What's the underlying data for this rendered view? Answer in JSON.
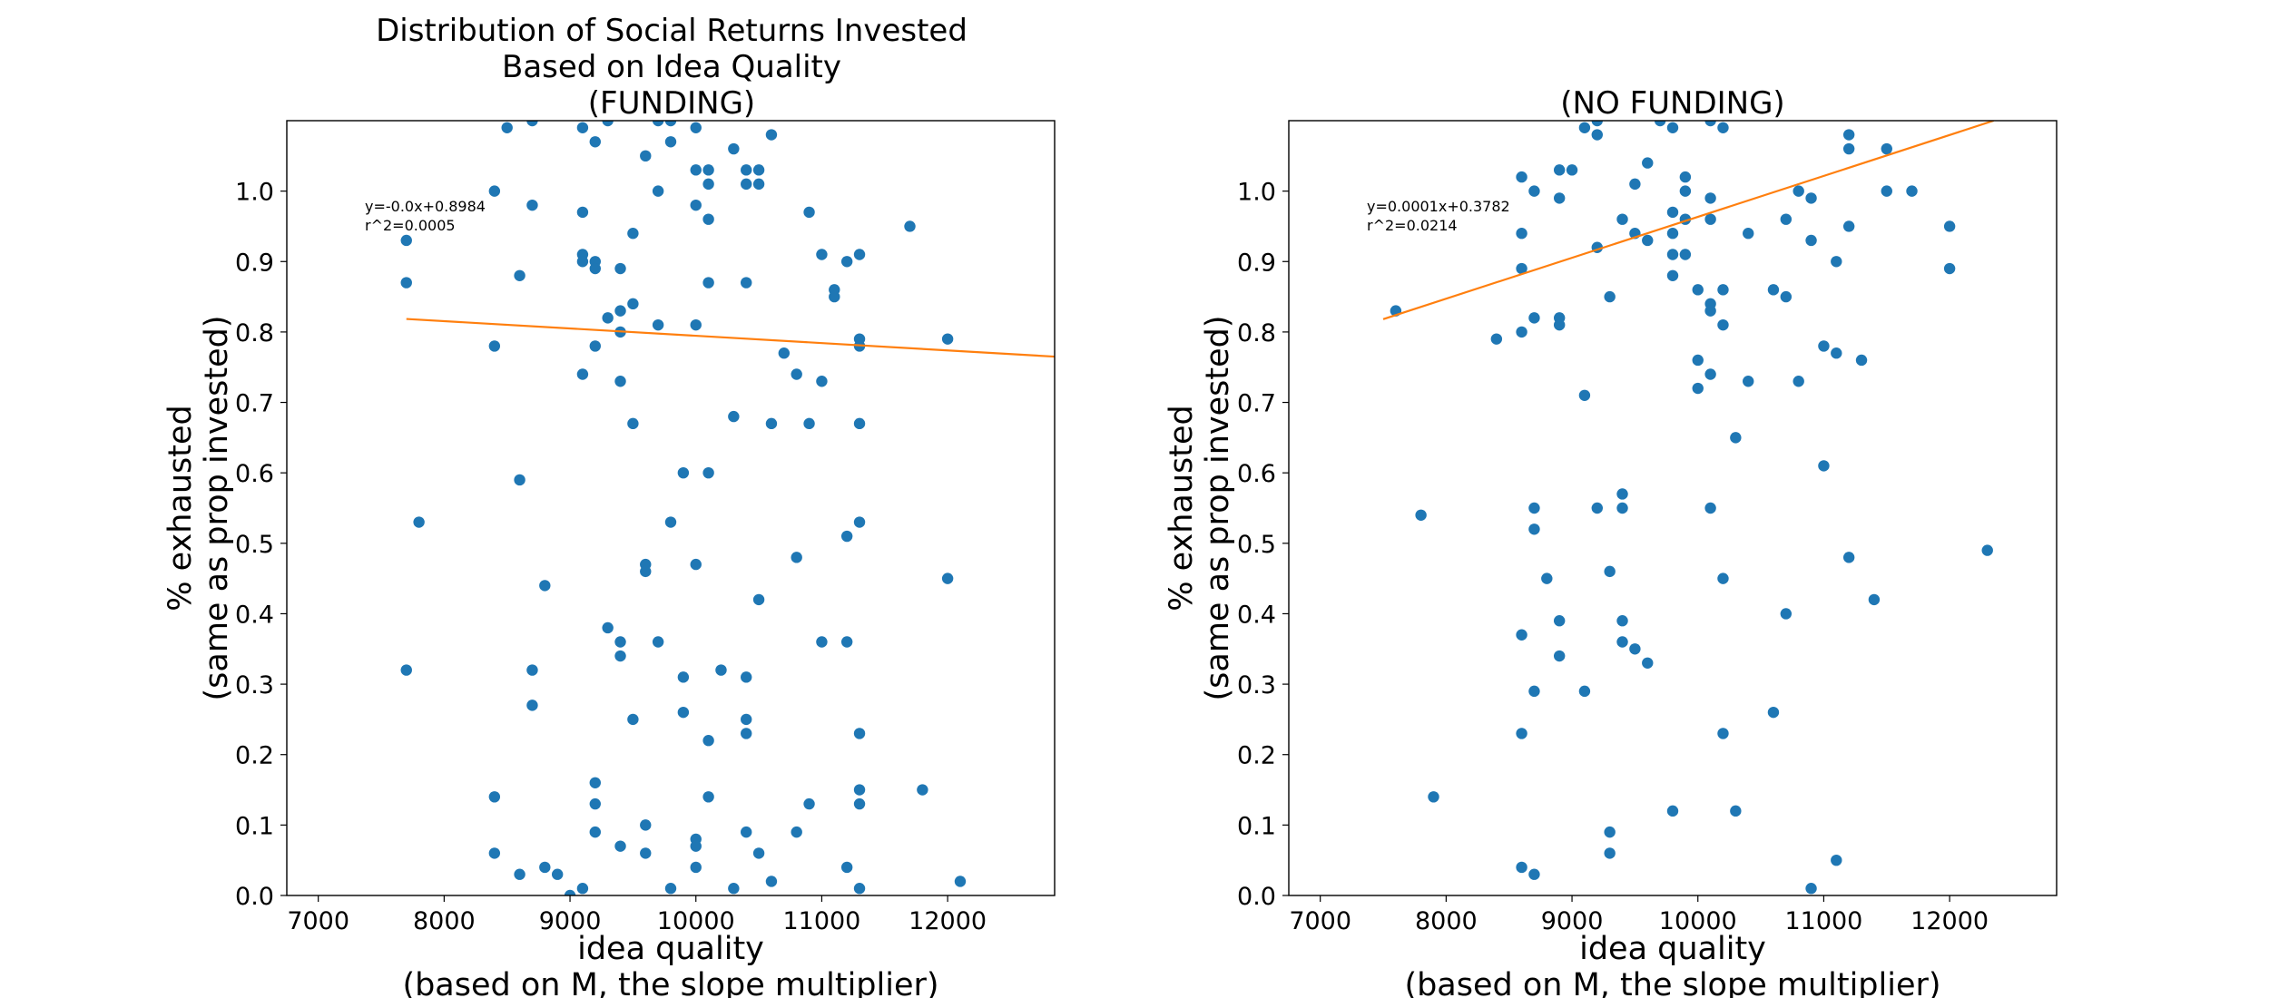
{
  "chart_data": [
    {
      "type": "scatter",
      "title": "Distribution of Social Returns Invested\nBased on Idea Quality\n(FUNDING)",
      "xlabel": "idea quality\n(based on M, the slope multiplier)",
      "ylabel": "% exhausted\n(same as prop invested)",
      "xlim": [
        6750,
        12850
      ],
      "ylim": [
        0.0,
        1.1
      ],
      "xticks": [
        "7000",
        "8000",
        "9000",
        "10000",
        "11000",
        "12000"
      ],
      "yticks": [
        "0.0",
        "0.1",
        "0.2",
        "0.3",
        "0.4",
        "0.5",
        "0.6",
        "0.7",
        "0.8",
        "0.9",
        "1.0"
      ],
      "point_color": "#1f77b4",
      "line_color": "#ff7f0e",
      "fit_text": "y=-0.0x+0.8984\nr^2=0.0005",
      "fit_line": {
        "x": [
          7700,
          12850
        ],
        "y": [
          0.8185,
          0.765
        ]
      },
      "points": [
        [
          7700,
          0.93
        ],
        [
          7700,
          0.87
        ],
        [
          7700,
          0.32
        ],
        [
          7800,
          0.53
        ],
        [
          8400,
          1.0
        ],
        [
          8400,
          0.78
        ],
        [
          8400,
          0.14
        ],
        [
          8400,
          0.06
        ],
        [
          8500,
          1.09
        ],
        [
          8600,
          0.88
        ],
        [
          8600,
          0.59
        ],
        [
          8600,
          0.03
        ],
        [
          8700,
          1.1
        ],
        [
          8700,
          0.98
        ],
        [
          8700,
          0.32
        ],
        [
          8700,
          0.27
        ],
        [
          8800,
          0.44
        ],
        [
          8800,
          0.04
        ],
        [
          8900,
          0.03
        ],
        [
          9000,
          0.0
        ],
        [
          9100,
          1.09
        ],
        [
          9100,
          0.97
        ],
        [
          9100,
          0.91
        ],
        [
          9100,
          0.9
        ],
        [
          9100,
          0.74
        ],
        [
          9100,
          0.01
        ],
        [
          9200,
          1.07
        ],
        [
          9200,
          0.9
        ],
        [
          9200,
          0.89
        ],
        [
          9200,
          0.78
        ],
        [
          9200,
          0.16
        ],
        [
          9200,
          0.13
        ],
        [
          9200,
          0.09
        ],
        [
          9300,
          1.1
        ],
        [
          9300,
          0.82
        ],
        [
          9300,
          0.38
        ],
        [
          9400,
          0.89
        ],
        [
          9400,
          0.83
        ],
        [
          9400,
          0.8
        ],
        [
          9400,
          0.73
        ],
        [
          9400,
          0.36
        ],
        [
          9400,
          0.34
        ],
        [
          9400,
          0.07
        ],
        [
          9500,
          0.94
        ],
        [
          9500,
          0.84
        ],
        [
          9500,
          0.67
        ],
        [
          9500,
          0.25
        ],
        [
          9600,
          1.05
        ],
        [
          9600,
          0.47
        ],
        [
          9600,
          0.46
        ],
        [
          9600,
          0.1
        ],
        [
          9600,
          0.06
        ],
        [
          9700,
          1.1
        ],
        [
          9700,
          1.0
        ],
        [
          9700,
          0.81
        ],
        [
          9700,
          0.36
        ],
        [
          9800,
          1.1
        ],
        [
          9800,
          1.07
        ],
        [
          9800,
          0.53
        ],
        [
          9800,
          0.01
        ],
        [
          9900,
          0.6
        ],
        [
          9900,
          0.31
        ],
        [
          9900,
          0.26
        ],
        [
          10000,
          1.09
        ],
        [
          10000,
          1.03
        ],
        [
          10000,
          0.98
        ],
        [
          10000,
          0.81
        ],
        [
          10000,
          0.47
        ],
        [
          10000,
          0.08
        ],
        [
          10000,
          0.07
        ],
        [
          10000,
          0.04
        ],
        [
          10100,
          1.03
        ],
        [
          10100,
          1.01
        ],
        [
          10100,
          0.96
        ],
        [
          10100,
          0.87
        ],
        [
          10100,
          0.6
        ],
        [
          10100,
          0.22
        ],
        [
          10100,
          0.14
        ],
        [
          10200,
          0.32
        ],
        [
          10300,
          1.06
        ],
        [
          10300,
          0.68
        ],
        [
          10300,
          0.01
        ],
        [
          10400,
          1.03
        ],
        [
          10400,
          1.01
        ],
        [
          10400,
          0.87
        ],
        [
          10400,
          0.31
        ],
        [
          10400,
          0.25
        ],
        [
          10400,
          0.23
        ],
        [
          10400,
          0.09
        ],
        [
          10500,
          1.03
        ],
        [
          10500,
          1.01
        ],
        [
          10500,
          0.42
        ],
        [
          10500,
          0.06
        ],
        [
          10600,
          1.08
        ],
        [
          10600,
          0.67
        ],
        [
          10600,
          0.02
        ],
        [
          10700,
          0.77
        ],
        [
          10800,
          0.74
        ],
        [
          10800,
          0.48
        ],
        [
          10800,
          0.09
        ],
        [
          10900,
          0.97
        ],
        [
          10900,
          0.67
        ],
        [
          10900,
          0.13
        ],
        [
          11000,
          0.91
        ],
        [
          11000,
          0.73
        ],
        [
          11000,
          0.36
        ],
        [
          11100,
          0.86
        ],
        [
          11100,
          0.85
        ],
        [
          11200,
          0.9
        ],
        [
          11200,
          0.51
        ],
        [
          11200,
          0.36
        ],
        [
          11200,
          0.04
        ],
        [
          11300,
          0.91
        ],
        [
          11300,
          0.79
        ],
        [
          11300,
          0.78
        ],
        [
          11300,
          0.67
        ],
        [
          11300,
          0.53
        ],
        [
          11300,
          0.23
        ],
        [
          11300,
          0.15
        ],
        [
          11300,
          0.13
        ],
        [
          11300,
          0.01
        ],
        [
          11700,
          0.95
        ],
        [
          11800,
          0.15
        ],
        [
          12000,
          0.79
        ],
        [
          12000,
          0.45
        ],
        [
          12100,
          0.02
        ]
      ]
    },
    {
      "type": "scatter",
      "title": "(NO FUNDING)",
      "xlabel": "idea quality\n(based on M, the slope multiplier)",
      "ylabel": "% exhausted\n(same as prop invested)",
      "xlim": [
        6750,
        12850
      ],
      "ylim": [
        0.0,
        1.1
      ],
      "xticks": [
        "7000",
        "8000",
        "9000",
        "10000",
        "11000",
        "12000"
      ],
      "yticks": [
        "0.0",
        "0.1",
        "0.2",
        "0.3",
        "0.4",
        "0.5",
        "0.6",
        "0.7",
        "0.8",
        "0.9",
        "1.0"
      ],
      "point_color": "#1f77b4",
      "line_color": "#ff7f0e",
      "fit_text": "y=0.0001x+0.3782\nr^2=0.0214",
      "fit_line": {
        "x": [
          7500,
          12350
        ],
        "y": [
          0.8182,
          1.1
        ]
      },
      "points": [
        [
          7600,
          0.83
        ],
        [
          7800,
          0.54
        ],
        [
          7900,
          0.14
        ],
        [
          8400,
          0.79
        ],
        [
          8600,
          1.02
        ],
        [
          8600,
          0.94
        ],
        [
          8600,
          0.89
        ],
        [
          8600,
          0.8
        ],
        [
          8600,
          0.37
        ],
        [
          8600,
          0.23
        ],
        [
          8600,
          0.04
        ],
        [
          8700,
          1.0
        ],
        [
          8700,
          0.82
        ],
        [
          8700,
          0.55
        ],
        [
          8700,
          0.52
        ],
        [
          8700,
          0.29
        ],
        [
          8700,
          0.03
        ],
        [
          8800,
          0.45
        ],
        [
          8900,
          1.03
        ],
        [
          8900,
          0.99
        ],
        [
          8900,
          0.82
        ],
        [
          8900,
          0.81
        ],
        [
          8900,
          0.39
        ],
        [
          8900,
          0.34
        ],
        [
          9000,
          1.03
        ],
        [
          9100,
          1.09
        ],
        [
          9100,
          0.71
        ],
        [
          9100,
          0.29
        ],
        [
          9200,
          1.1
        ],
        [
          9200,
          1.08
        ],
        [
          9200,
          0.92
        ],
        [
          9200,
          0.55
        ],
        [
          9300,
          0.85
        ],
        [
          9300,
          0.46
        ],
        [
          9300,
          0.09
        ],
        [
          9300,
          0.06
        ],
        [
          9400,
          0.96
        ],
        [
          9400,
          0.57
        ],
        [
          9400,
          0.55
        ],
        [
          9400,
          0.39
        ],
        [
          9400,
          0.36
        ],
        [
          9500,
          1.01
        ],
        [
          9500,
          0.94
        ],
        [
          9500,
          0.35
        ],
        [
          9600,
          1.04
        ],
        [
          9600,
          0.93
        ],
        [
          9600,
          0.33
        ],
        [
          9700,
          1.1
        ],
        [
          9800,
          1.09
        ],
        [
          9800,
          0.97
        ],
        [
          9800,
          0.94
        ],
        [
          9800,
          0.91
        ],
        [
          9800,
          0.88
        ],
        [
          9800,
          0.12
        ],
        [
          9900,
          1.02
        ],
        [
          9900,
          1.0
        ],
        [
          9900,
          0.96
        ],
        [
          9900,
          0.91
        ],
        [
          10000,
          0.86
        ],
        [
          10000,
          0.76
        ],
        [
          10000,
          0.72
        ],
        [
          10100,
          1.1
        ],
        [
          10100,
          0.99
        ],
        [
          10100,
          0.96
        ],
        [
          10100,
          0.84
        ],
        [
          10100,
          0.83
        ],
        [
          10100,
          0.74
        ],
        [
          10100,
          0.55
        ],
        [
          10200,
          1.09
        ],
        [
          10200,
          0.86
        ],
        [
          10200,
          0.81
        ],
        [
          10200,
          0.45
        ],
        [
          10200,
          0.23
        ],
        [
          10300,
          0.65
        ],
        [
          10300,
          0.12
        ],
        [
          10400,
          0.94
        ],
        [
          10400,
          0.73
        ],
        [
          10600,
          0.86
        ],
        [
          10600,
          0.26
        ],
        [
          10700,
          0.96
        ],
        [
          10700,
          0.85
        ],
        [
          10700,
          0.4
        ],
        [
          10800,
          1.0
        ],
        [
          10800,
          0.73
        ],
        [
          10900,
          0.99
        ],
        [
          10900,
          0.93
        ],
        [
          10900,
          0.01
        ],
        [
          11000,
          0.78
        ],
        [
          11000,
          0.61
        ],
        [
          11100,
          0.9
        ],
        [
          11100,
          0.77
        ],
        [
          11100,
          0.05
        ],
        [
          11200,
          1.08
        ],
        [
          11200,
          1.06
        ],
        [
          11200,
          0.95
        ],
        [
          11200,
          0.48
        ],
        [
          11300,
          0.76
        ],
        [
          11400,
          0.42
        ],
        [
          11500,
          1.06
        ],
        [
          11500,
          1.0
        ],
        [
          11700,
          1.0
        ],
        [
          12000,
          0.95
        ],
        [
          12000,
          0.89
        ],
        [
          12300,
          0.49
        ]
      ]
    }
  ]
}
